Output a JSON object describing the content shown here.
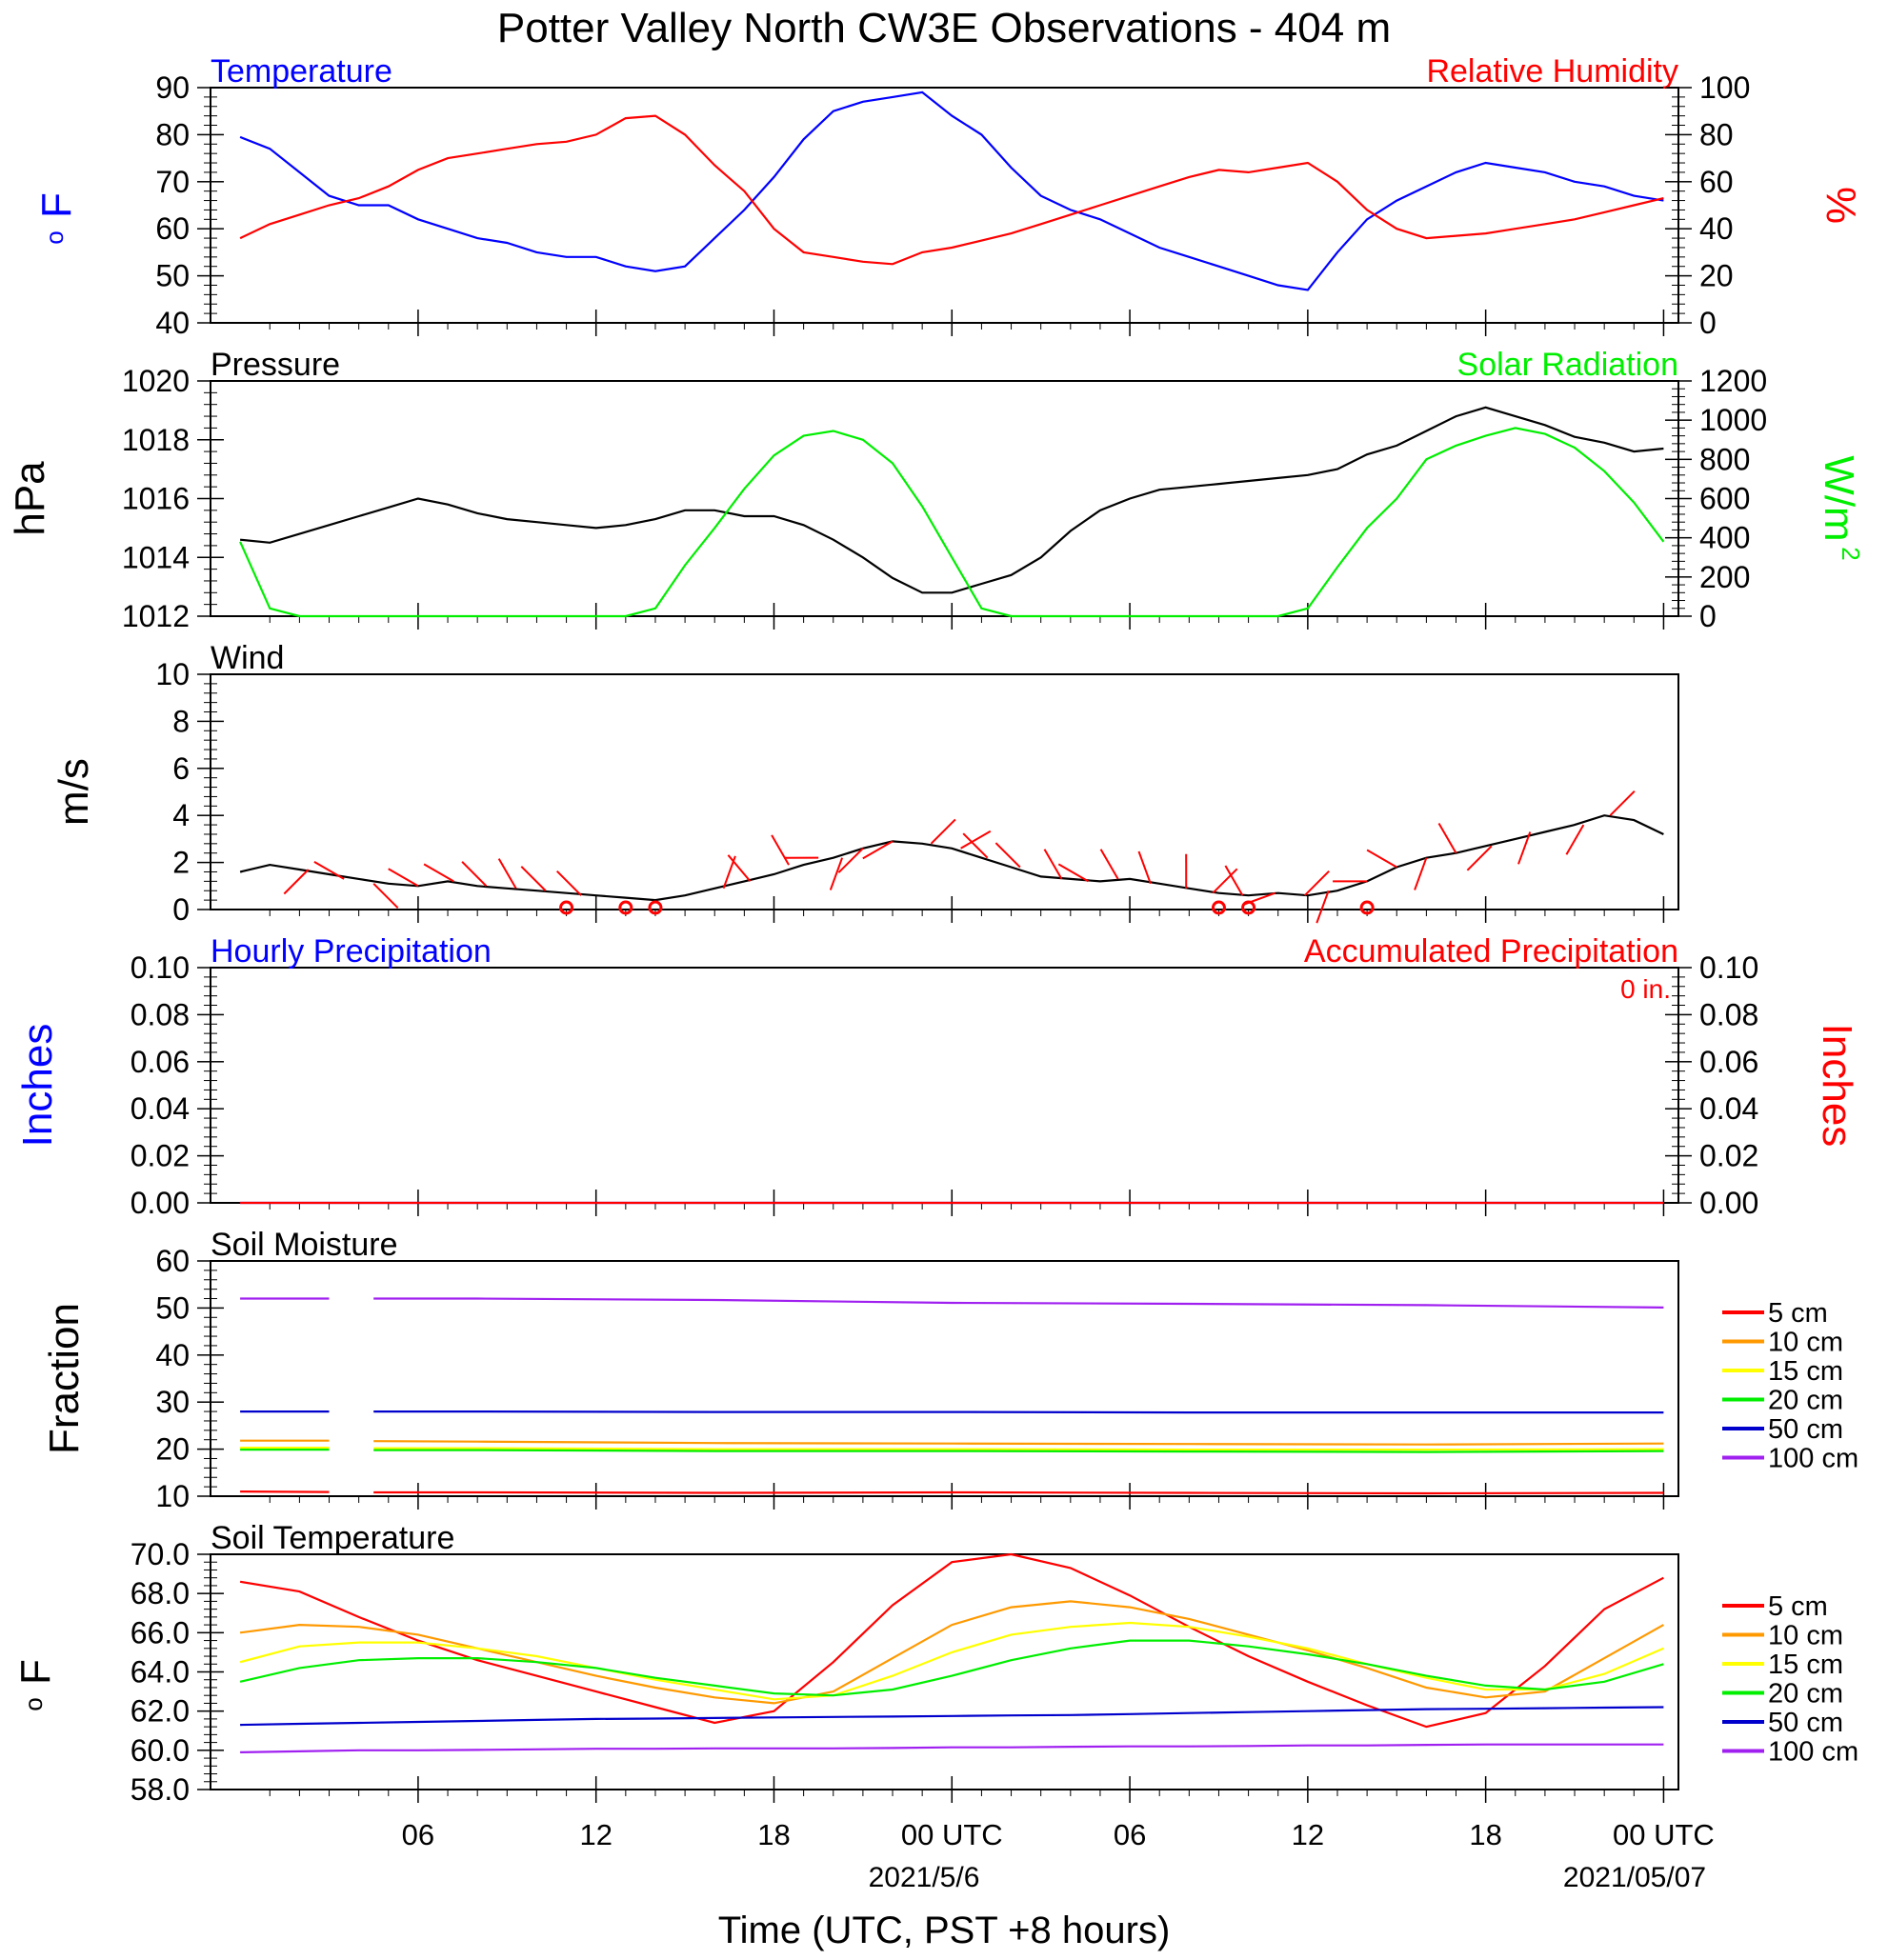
{
  "title": "Potter Valley North CW3E Observations - 404 m",
  "colors": {
    "blue": "#0000ff",
    "red": "#ff0000",
    "green": "#00ee00",
    "black": "#000000",
    "orange": "#ff9900",
    "yellow": "#ffff00",
    "purple": "#a020f0",
    "darkblue": "#0000cc"
  },
  "x_axis": {
    "ticks": [
      "06",
      "12",
      "18",
      "00 UTC",
      "06",
      "12",
      "18",
      "00 UTC"
    ],
    "dates": [
      "2021/5/6",
      "2021/05/07"
    ],
    "label": "Time (UTC, PST +8 hours)"
  },
  "chart_data": [
    {
      "id": "temp_rh",
      "type": "line",
      "left_title": "Temperature",
      "right_title": "Relative Humidity",
      "ylabel_left": "oF",
      "ylabel_right": "%",
      "ylim_left": [
        40,
        90
      ],
      "ylim_right": [
        0,
        100
      ],
      "yticks_left": [
        "90",
        "80",
        "70",
        "60",
        "50",
        "40"
      ],
      "yticks_right": [
        "100",
        "80",
        "60",
        "40",
        "20",
        "0"
      ],
      "x_hours": [
        0,
        1,
        2,
        3,
        4,
        5,
        6,
        7,
        8,
        9,
        10,
        11,
        12,
        13,
        14,
        15,
        16,
        17,
        18,
        19,
        20,
        21,
        22,
        23,
        24,
        25,
        26,
        27,
        28,
        29,
        30,
        31,
        32,
        33,
        34,
        35,
        36,
        37,
        38,
        39,
        40,
        41,
        42,
        43,
        44,
        45,
        46,
        47,
        48
      ],
      "series": [
        {
          "name": "Temperature",
          "axis": "left",
          "color": "#0000ff",
          "values": [
            79.5,
            77,
            72,
            67,
            65,
            65,
            62,
            60,
            58,
            57,
            55,
            54,
            54,
            52,
            51,
            52,
            58,
            64,
            71,
            79,
            85,
            87,
            88,
            89,
            84,
            80,
            73,
            67,
            64,
            62,
            59,
            56,
            54,
            52,
            50,
            48,
            47,
            55,
            62,
            66,
            69,
            72,
            74,
            73,
            72,
            70,
            69,
            67,
            66
          ]
        },
        {
          "name": "Relative Humidity",
          "axis": "right",
          "color": "#ff0000",
          "values": [
            36,
            42,
            46,
            50,
            53,
            58,
            65,
            70,
            72,
            74,
            76,
            77,
            80,
            87,
            88,
            80,
            67,
            56,
            40,
            30,
            28,
            26,
            25,
            30,
            32,
            35,
            38,
            42,
            46,
            50,
            54,
            58,
            62,
            65,
            64,
            66,
            68,
            60,
            48,
            40,
            36,
            37,
            38,
            40,
            42,
            44,
            47,
            50,
            53
          ]
        }
      ]
    },
    {
      "id": "pressure_solar",
      "type": "line",
      "left_title": "Pressure",
      "right_title": "Solar Radiation",
      "ylabel_left": "hPa",
      "ylabel_right": "W/m2",
      "ylim_left": [
        1012,
        1020
      ],
      "ylim_right": [
        0,
        1200
      ],
      "yticks_left": [
        "1020",
        "1018",
        "1016",
        "1014",
        "1012"
      ],
      "yticks_right": [
        "1200",
        "1000",
        "800",
        "600",
        "400",
        "200",
        "0"
      ],
      "x_hours": [
        0,
        1,
        2,
        3,
        4,
        5,
        6,
        7,
        8,
        9,
        10,
        11,
        12,
        13,
        14,
        15,
        16,
        17,
        18,
        19,
        20,
        21,
        22,
        23,
        24,
        25,
        26,
        27,
        28,
        29,
        30,
        31,
        32,
        33,
        34,
        35,
        36,
        37,
        38,
        39,
        40,
        41,
        42,
        43,
        44,
        45,
        46,
        47,
        48
      ],
      "series": [
        {
          "name": "Pressure",
          "axis": "left",
          "color": "#000000",
          "values": [
            1014.6,
            1014.5,
            1014.8,
            1015.1,
            1015.4,
            1015.7,
            1016.0,
            1015.8,
            1015.5,
            1015.3,
            1015.2,
            1015.1,
            1015.0,
            1015.1,
            1015.3,
            1015.6,
            1015.6,
            1015.4,
            1015.4,
            1015.1,
            1014.6,
            1014.0,
            1013.3,
            1012.8,
            1012.8,
            1013.1,
            1013.4,
            1014.0,
            1014.9,
            1015.6,
            1016.0,
            1016.3,
            1016.4,
            1016.5,
            1016.6,
            1016.7,
            1016.8,
            1017.0,
            1017.5,
            1017.8,
            1018.3,
            1018.8,
            1019.1,
            1018.8,
            1018.5,
            1018.1,
            1017.9,
            1017.6,
            1017.7
          ]
        },
        {
          "name": "Solar Radiation",
          "axis": "right",
          "color": "#00ee00",
          "values": [
            380,
            40,
            0,
            0,
            0,
            0,
            0,
            0,
            0,
            0,
            0,
            0,
            0,
            0,
            40,
            260,
            450,
            650,
            820,
            920,
            945,
            900,
            780,
            560,
            300,
            40,
            0,
            0,
            0,
            0,
            0,
            0,
            0,
            0,
            0,
            0,
            40,
            250,
            450,
            600,
            800,
            870,
            920,
            960,
            930,
            860,
            740,
            580,
            380
          ]
        }
      ]
    },
    {
      "id": "wind",
      "type": "line",
      "left_title": "Wind",
      "ylabel_left": "m/s",
      "ylim_left": [
        0,
        10
      ],
      "yticks_left": [
        "10",
        "8",
        "6",
        "4",
        "2",
        "0"
      ],
      "x_hours": [
        0,
        1,
        2,
        3,
        4,
        5,
        6,
        7,
        8,
        9,
        10,
        11,
        12,
        13,
        14,
        15,
        16,
        17,
        18,
        19,
        20,
        21,
        22,
        23,
        24,
        25,
        26,
        27,
        28,
        29,
        30,
        31,
        32,
        33,
        34,
        35,
        36,
        37,
        38,
        39,
        40,
        41,
        42,
        43,
        44,
        45,
        46,
        47,
        48
      ],
      "series": [
        {
          "name": "Wind speed",
          "axis": "left",
          "color": "#000000",
          "values": [
            1.6,
            1.9,
            1.7,
            1.5,
            1.3,
            1.1,
            1.0,
            1.2,
            1.0,
            0.9,
            0.8,
            0.7,
            0.6,
            0.5,
            0.4,
            0.6,
            0.9,
            1.2,
            1.5,
            1.9,
            2.2,
            2.6,
            2.9,
            2.8,
            2.6,
            2.2,
            1.8,
            1.4,
            1.3,
            1.2,
            1.3,
            1.1,
            0.9,
            0.7,
            0.6,
            0.7,
            0.6,
            0.8,
            1.2,
            1.8,
            2.2,
            2.4,
            2.7,
            3.0,
            3.3,
            3.6,
            4.0,
            3.8,
            3.2
          ]
        }
      ]
    },
    {
      "id": "precip",
      "type": "line",
      "left_title": "Hourly Precipitation",
      "right_title": "Accumulated Precipitation",
      "annotation": "0 in.",
      "ylabel_left": "Inches",
      "ylabel_right": "Inches",
      "ylim_left": [
        0,
        0.1
      ],
      "ylim_right": [
        0,
        0.1
      ],
      "yticks_left": [
        "0.10",
        "0.08",
        "0.06",
        "0.04",
        "0.02",
        "0.00"
      ],
      "yticks_right": [
        "0.10",
        "0.08",
        "0.06",
        "0.04",
        "0.02",
        "0.00"
      ],
      "x_hours": [
        0,
        48
      ],
      "series": [
        {
          "name": "Hourly Precipitation",
          "axis": "left",
          "color": "#0000ff",
          "values": [
            0,
            0
          ]
        },
        {
          "name": "Accumulated Precipitation",
          "axis": "right",
          "color": "#ff0000",
          "values": [
            0,
            0
          ]
        }
      ]
    },
    {
      "id": "soil_moisture",
      "type": "line",
      "left_title": "Soil Moisture",
      "ylabel_left": "Fraction",
      "ylim_left": [
        10,
        60
      ],
      "yticks_left": [
        "60",
        "50",
        "40",
        "30",
        "20",
        "10"
      ],
      "x_hours": [
        0,
        3,
        3.5,
        4,
        4.5,
        8,
        16,
        24,
        32,
        40,
        48
      ],
      "series": [
        {
          "name": "5 cm",
          "axis": "left",
          "color": "#ff0000",
          "values": [
            11.0,
            10.9,
            null,
            null,
            10.8,
            10.8,
            10.7,
            10.8,
            10.7,
            10.6,
            10.7
          ]
        },
        {
          "name": "10 cm",
          "axis": "left",
          "color": "#ff9900",
          "values": [
            21.8,
            21.8,
            null,
            null,
            21.7,
            21.6,
            21.3,
            21.2,
            21.1,
            21.0,
            21.2
          ]
        },
        {
          "name": "15 cm",
          "axis": "left",
          "color": "#ffff00",
          "values": [
            20.3,
            20.3,
            null,
            null,
            20.2,
            20.2,
            20.0,
            20.0,
            19.9,
            19.9,
            20.0
          ]
        },
        {
          "name": "20 cm",
          "axis": "left",
          "color": "#00ee00",
          "values": [
            19.9,
            19.9,
            null,
            null,
            19.8,
            19.8,
            19.6,
            19.6,
            19.5,
            19.4,
            19.6
          ]
        },
        {
          "name": "50 cm",
          "axis": "left",
          "color": "#0000cc",
          "values": [
            28.0,
            28.0,
            null,
            null,
            28.0,
            28.0,
            27.9,
            27.9,
            27.8,
            27.8,
            27.8
          ]
        },
        {
          "name": "100 cm",
          "axis": "left",
          "color": "#a020f0",
          "values": [
            52.0,
            52.0,
            null,
            null,
            52.0,
            52.0,
            51.7,
            51.1,
            50.9,
            50.6,
            50.1
          ]
        }
      ]
    },
    {
      "id": "soil_temperature",
      "type": "line",
      "left_title": "Soil Temperature",
      "ylabel_left": "oF",
      "ylim_left": [
        58,
        70
      ],
      "yticks_left": [
        "70.0",
        "68.0",
        "66.0",
        "64.0",
        "62.0",
        "60.0",
        "58.0"
      ],
      "x_hours": [
        0,
        2,
        4,
        6,
        8,
        10,
        12,
        14,
        16,
        18,
        20,
        22,
        24,
        26,
        28,
        30,
        32,
        34,
        36,
        38,
        40,
        42,
        44,
        46,
        48
      ],
      "series": [
        {
          "name": "5 cm",
          "axis": "left",
          "color": "#ff0000",
          "values": [
            68.6,
            68.1,
            66.8,
            65.6,
            64.6,
            63.8,
            63.0,
            62.2,
            61.4,
            62.0,
            64.5,
            67.4,
            69.6,
            70.0,
            69.3,
            67.9,
            66.3,
            64.8,
            63.5,
            62.3,
            61.2,
            61.9,
            64.3,
            67.2,
            68.8
          ]
        },
        {
          "name": "10 cm",
          "axis": "left",
          "color": "#ff9900",
          "values": [
            66.0,
            66.4,
            66.3,
            65.9,
            65.2,
            64.5,
            63.8,
            63.2,
            62.7,
            62.4,
            63.0,
            64.7,
            66.4,
            67.3,
            67.6,
            67.3,
            66.7,
            65.9,
            65.1,
            64.2,
            63.2,
            62.7,
            63.0,
            64.7,
            66.4
          ]
        },
        {
          "name": "15 cm",
          "axis": "left",
          "color": "#ffff00",
          "values": [
            64.5,
            65.3,
            65.5,
            65.5,
            65.2,
            64.8,
            64.2,
            63.6,
            63.1,
            62.6,
            62.8,
            63.8,
            65.0,
            65.9,
            66.3,
            66.5,
            66.3,
            65.8,
            65.2,
            64.4,
            63.7,
            63.1,
            63.1,
            63.9,
            65.2
          ]
        },
        {
          "name": "20 cm",
          "axis": "left",
          "color": "#00ee00",
          "values": [
            63.5,
            64.2,
            64.6,
            64.7,
            64.7,
            64.5,
            64.2,
            63.7,
            63.3,
            62.9,
            62.8,
            63.1,
            63.8,
            64.6,
            65.2,
            65.6,
            65.6,
            65.3,
            64.9,
            64.4,
            63.8,
            63.3,
            63.1,
            63.5,
            64.4
          ]
        },
        {
          "name": "50 cm",
          "axis": "left",
          "color": "#0000cc",
          "values": [
            61.3,
            61.35,
            61.4,
            61.45,
            61.5,
            61.55,
            61.6,
            61.62,
            61.65,
            61.68,
            61.7,
            61.72,
            61.75,
            61.78,
            61.8,
            61.85,
            61.9,
            61.95,
            62.0,
            62.05,
            62.1,
            62.12,
            62.15,
            62.18,
            62.2
          ]
        },
        {
          "name": "100 cm",
          "axis": "left",
          "color": "#a020f0",
          "values": [
            59.9,
            59.95,
            60.0,
            60.0,
            60.02,
            60.05,
            60.08,
            60.08,
            60.1,
            60.1,
            60.1,
            60.12,
            60.15,
            60.15,
            60.18,
            60.2,
            60.2,
            60.22,
            60.25,
            60.25,
            60.28,
            60.3,
            60.3,
            60.3,
            60.3
          ]
        }
      ]
    }
  ],
  "soil_legend": [
    "5 cm",
    "10 cm",
    "15 cm",
    "20 cm",
    "50 cm",
    "100 cm"
  ],
  "wind_barbs": [
    {
      "h": 2.3,
      "dir": 225
    },
    {
      "h": 3.5,
      "dir": 300
    },
    {
      "h": 4.5,
      "dir": 135
    },
    {
      "h": 6.0,
      "dir": 300
    },
    {
      "h": 7.2,
      "dir": 300
    },
    {
      "h": 8.3,
      "dir": 315
    },
    {
      "h": 9.3,
      "dir": 330
    },
    {
      "h": 10.3,
      "dir": 315
    },
    {
      "h": 11.5,
      "dir": 315
    },
    {
      "h": 16.3,
      "dir": 20
    },
    {
      "h": 17.2,
      "dir": 320
    },
    {
      "h": 18.5,
      "dir": 330
    },
    {
      "h": 19.5,
      "dir": 270
    },
    {
      "h": 20.3,
      "dir": 200
    },
    {
      "h": 21.0,
      "dir": 225
    },
    {
      "h": 22.0,
      "dir": 240
    },
    {
      "h": 23.3,
      "dir": 45
    },
    {
      "h": 24.3,
      "dir": 60
    },
    {
      "h": 25.2,
      "dir": 315
    },
    {
      "h": 26.3,
      "dir": 315
    },
    {
      "h": 27.7,
      "dir": 330
    },
    {
      "h": 28.6,
      "dir": 300
    },
    {
      "h": 29.6,
      "dir": 330
    },
    {
      "h": 30.7,
      "dir": 340
    },
    {
      "h": 31.9,
      "dir": 0
    },
    {
      "h": 32.8,
      "dir": 45
    },
    {
      "h": 33.8,
      "dir": 330
    },
    {
      "h": 34.9,
      "dir": 250
    },
    {
      "h": 35.9,
      "dir": 45
    },
    {
      "h": 36.7,
      "dir": 200
    },
    {
      "h": 38.0,
      "dir": 270
    },
    {
      "h": 39.0,
      "dir": 300
    },
    {
      "h": 40.0,
      "dir": 200
    },
    {
      "h": 41.0,
      "dir": 330
    },
    {
      "h": 42.2,
      "dir": 225
    },
    {
      "h": 43.5,
      "dir": 200
    },
    {
      "h": 45.3,
      "dir": 210
    },
    {
      "h": 46.2,
      "dir": 45
    }
  ],
  "calm_points": [
    11.0,
    13.0,
    14.0,
    33.0,
    34.0,
    38.0
  ]
}
